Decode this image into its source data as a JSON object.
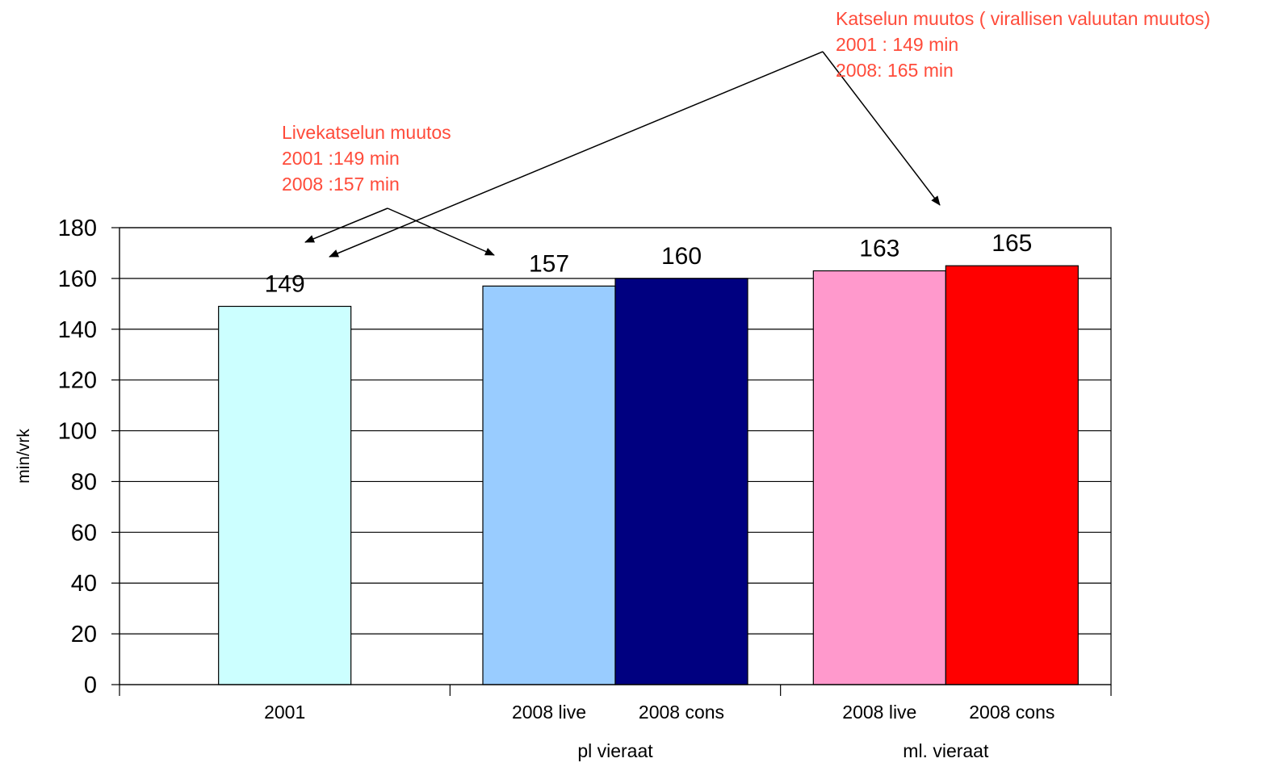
{
  "chart_data": {
    "type": "bar",
    "ylabel": "min/vrk",
    "ylim": [
      0,
      180
    ],
    "yticks": [
      "0",
      "20",
      "40",
      "60",
      "80",
      "100",
      "120",
      "140",
      "160",
      "180"
    ],
    "grid": true,
    "bars": [
      {
        "label": "2001",
        "value": 149,
        "color": "#ccffff"
      },
      {
        "label": "2008 live",
        "value": 157,
        "color": "#99ccff"
      },
      {
        "label": "2008 cons",
        "value": 160,
        "color": "#000080"
      },
      {
        "label": "2008 live",
        "value": 163,
        "color": "#ff99cc"
      },
      {
        "label": "2008 cons",
        "value": 165,
        "color": "#ff0000"
      }
    ],
    "groups": [
      "pl vieraat",
      "ml. vieraat"
    ]
  },
  "annotations": {
    "live_change": {
      "title": "Livekatselun muutos",
      "line1": "2001 :149 min",
      "line2": "2008 :157 min"
    },
    "total_change": {
      "title": "Katselun muutos ( virallisen valuutan muutos)",
      "line1": "2001 : 149 min",
      "line2": "2008:  165 min"
    }
  },
  "colors": {
    "annotation": "#ff4b3a"
  }
}
